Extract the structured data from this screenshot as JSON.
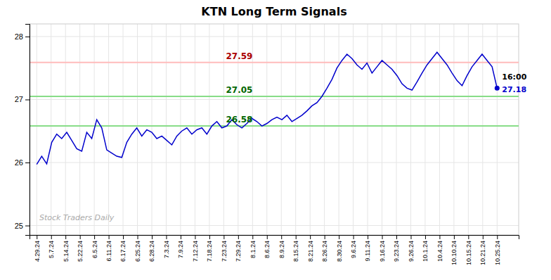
{
  "chart_data": {
    "type": "line",
    "title": "KTN Long Term Signals",
    "color": "#0000cc",
    "values": [
      25.97,
      26.1,
      25.98,
      26.32,
      26.45,
      26.38,
      26.48,
      26.35,
      26.22,
      26.18,
      26.48,
      26.38,
      26.68,
      26.55,
      26.2,
      26.15,
      26.1,
      26.08,
      26.32,
      26.45,
      26.55,
      26.42,
      26.52,
      26.48,
      26.38,
      26.42,
      26.35,
      26.28,
      26.42,
      26.5,
      26.55,
      26.45,
      26.52,
      26.55,
      26.45,
      26.58,
      26.65,
      26.55,
      26.58,
      26.68,
      26.6,
      26.55,
      26.62,
      26.7,
      26.65,
      26.58,
      26.62,
      26.68,
      26.72,
      26.68,
      26.75,
      26.65,
      26.7,
      26.75,
      26.82,
      26.9,
      26.95,
      27.05,
      27.18,
      27.32,
      27.5,
      27.62,
      27.72,
      27.65,
      27.55,
      27.48,
      27.58,
      27.42,
      27.52,
      27.62,
      27.55,
      27.48,
      27.38,
      27.25,
      27.18,
      27.15,
      27.28,
      27.42,
      27.55,
      27.65,
      27.75,
      27.65,
      27.55,
      27.42,
      27.3,
      27.22,
      27.38,
      27.52,
      27.62,
      27.72,
      27.62,
      27.52,
      27.18
    ],
    "xlim": [
      -1.4375,
      96.3125
    ],
    "xticks": [
      {
        "value": 0,
        "label": "4.29.24"
      },
      {
        "value": 2.875,
        "label": "5.7.24"
      },
      {
        "value": 5.75,
        "label": "5.14.24"
      },
      {
        "value": 8.625,
        "label": "5.22.24"
      },
      {
        "value": 11.5,
        "label": "6.5.24"
      },
      {
        "value": 14.375,
        "label": "6.11.24"
      },
      {
        "value": 17.25,
        "label": "6.17.24"
      },
      {
        "value": 20.125,
        "label": "6.25.24"
      },
      {
        "value": 23,
        "label": "6.28.24"
      },
      {
        "value": 25.875,
        "label": "7.3.24"
      },
      {
        "value": 28.75,
        "label": "7.9.24"
      },
      {
        "value": 31.625,
        "label": "7.12.24"
      },
      {
        "value": 34.5,
        "label": "7.18.24"
      },
      {
        "value": 37.375,
        "label": "7.23.24"
      },
      {
        "value": 40.25,
        "label": "7.29.24"
      },
      {
        "value": 43.125,
        "label": "8.1.24"
      },
      {
        "value": 46,
        "label": "8.6.24"
      },
      {
        "value": 48.875,
        "label": "8.9.24"
      },
      {
        "value": 51.75,
        "label": "8.15.24"
      },
      {
        "value": 54.625,
        "label": "8.21.24"
      },
      {
        "value": 57.5,
        "label": "8.26.24"
      },
      {
        "value": 60.375,
        "label": "8.30.24"
      },
      {
        "value": 63.25,
        "label": "9.6.24"
      },
      {
        "value": 66.125,
        "label": "9.11.24"
      },
      {
        "value": 69,
        "label": "9.16.24"
      },
      {
        "value": 71.875,
        "label": "9.23.24"
      },
      {
        "value": 74.75,
        "label": "9.26.24"
      },
      {
        "value": 77.625,
        "label": "10.1.24"
      },
      {
        "value": 80.5,
        "label": "10.4.24"
      },
      {
        "value": 83.375,
        "label": "10.10.24"
      },
      {
        "value": 86.25,
        "label": "10.15.24"
      },
      {
        "value": 89.125,
        "label": "10.21.24"
      },
      {
        "value": 92,
        "label": "10.25.24"
      }
    ],
    "ylim": [
      24.85,
      28.2
    ],
    "yticks": [
      25,
      26,
      27,
      28
    ],
    "grid": true,
    "reference_lines": [
      {
        "value": 27.59,
        "color": "#ffbbbb",
        "label_color": "#aa0000"
      },
      {
        "value": 27.05,
        "color": "#88dd88",
        "label_color": "#006600"
      },
      {
        "value": 26.58,
        "color": "#88dd88",
        "label_color": "#006600"
      }
    ],
    "last_time": "16:00",
    "last_price": 27.18,
    "watermark": "Stock Traders Daily"
  }
}
